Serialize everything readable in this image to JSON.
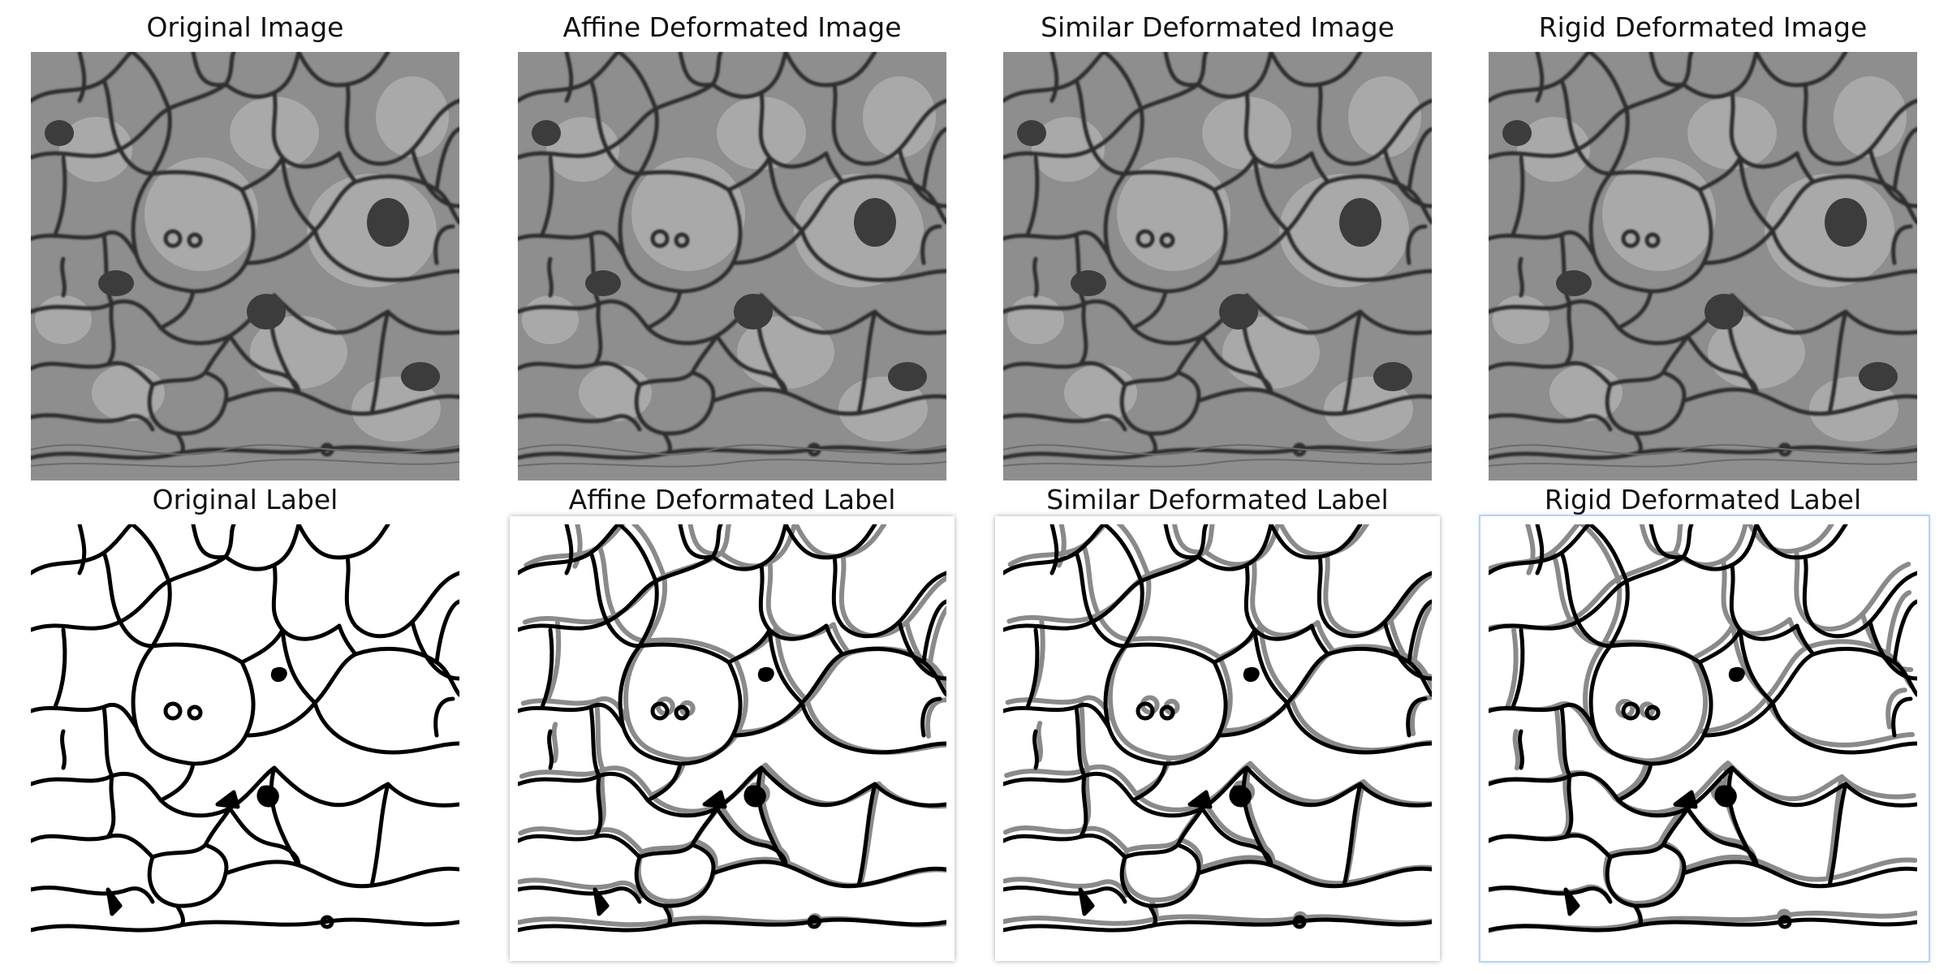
{
  "panels": [
    {
      "title": "Original Image",
      "kind": "em-image"
    },
    {
      "title": "Affine Deformated Image",
      "kind": "em-image"
    },
    {
      "title": "Similar Deformated Image",
      "kind": "em-image"
    },
    {
      "title": "Rigid Deformated Image",
      "kind": "em-image"
    },
    {
      "title": "Original Label",
      "kind": "label"
    },
    {
      "title": "Affine Deformated Label",
      "kind": "label-overlay"
    },
    {
      "title": "Similar Deformated Label",
      "kind": "label-overlay"
    },
    {
      "title": "Rigid Deformated Label",
      "kind": "label-overlay"
    }
  ],
  "colors": {
    "membrane": "#000000",
    "deformed_membrane": "#808080",
    "background_label": "#ffffff",
    "em_tissue": "#8c8c8c",
    "selection_outline": "#b9d3f3"
  }
}
